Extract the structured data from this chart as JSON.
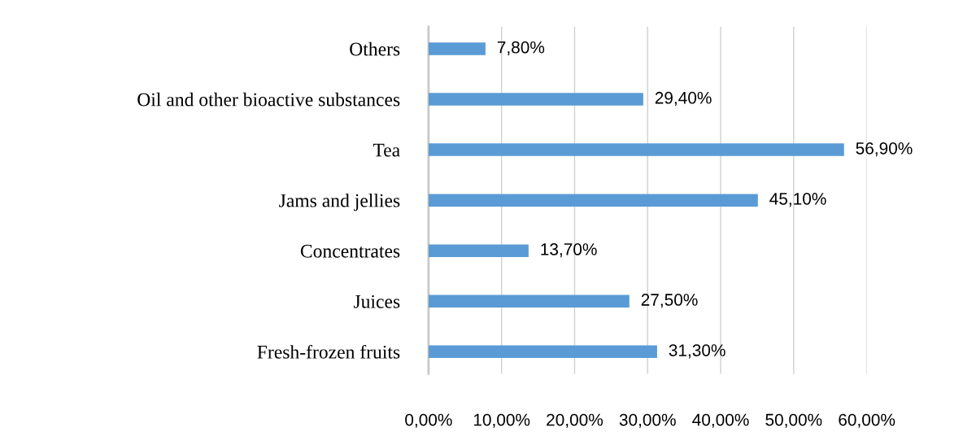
{
  "chart_data": {
    "type": "bar",
    "orientation": "horizontal",
    "categories": [
      "Others",
      "Oil and other bioactive substances",
      "Tea",
      "Jams and jellies",
      "Concentrates",
      "Juices",
      "Fresh-frozen fruits"
    ],
    "values": [
      7.8,
      29.4,
      56.9,
      45.1,
      13.7,
      27.5,
      31.3
    ],
    "value_labels": [
      "7,80%",
      "29,40%",
      "56,90%",
      "45,10%",
      "13,70%",
      "27,50%",
      "31,30%"
    ],
    "color": "#5b9bd5",
    "xlim": [
      0,
      60
    ],
    "xticks": [
      {
        "value": 0,
        "label": "0,00%"
      },
      {
        "value": 10,
        "label": "10,00%"
      },
      {
        "value": 20,
        "label": "20,00%"
      },
      {
        "value": 30,
        "label": "30,00%"
      },
      {
        "value": 40,
        "label": "40,00%"
      },
      {
        "value": 50,
        "label": "50,00%"
      },
      {
        "value": 60,
        "label": "60,00%"
      }
    ],
    "grid": "x",
    "legend": false
  }
}
